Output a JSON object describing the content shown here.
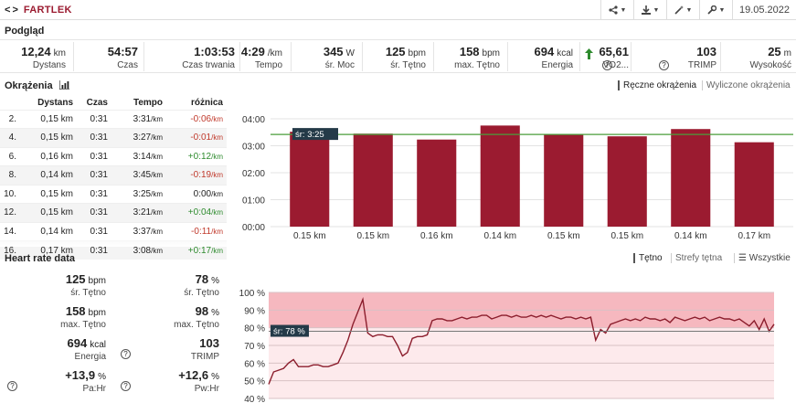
{
  "header": {
    "title": "FARTLEK",
    "date": "19.05.2022",
    "toolbar": [
      {
        "icon": "share-icon"
      },
      {
        "icon": "download-icon"
      },
      {
        "icon": "magic-wand-icon"
      },
      {
        "icon": "wrench-icon"
      }
    ]
  },
  "overview": {
    "heading": "Podgląd",
    "stats": [
      {
        "value": "12,24",
        "unit": "km",
        "label": "Dystans"
      },
      {
        "value": "54:57",
        "unit": "",
        "label": "Czas"
      },
      {
        "value": "1:03:53",
        "unit": "",
        "label": "Czas trwania"
      },
      {
        "value": "4:29",
        "unit": "/km",
        "label": "Tempo"
      },
      {
        "value": "345",
        "unit": "W",
        "label": "śr. Moc"
      },
      {
        "value": "125",
        "unit": "bpm",
        "label": "śr. Tętno"
      },
      {
        "value": "158",
        "unit": "bpm",
        "label": "max. Tętno"
      },
      {
        "value": "694",
        "unit": "kcal",
        "label": "Energia"
      },
      {
        "value": "65,61",
        "unit": "",
        "label": "VO2..."
      },
      {
        "value": "103",
        "unit": "",
        "label": "TRIMP"
      },
      {
        "value": "25",
        "unit": "m",
        "label": "Wysokość"
      }
    ]
  },
  "laps": {
    "heading": "Okrążenia",
    "toggle_manual": "Ręczne okrążenia",
    "toggle_computed": "Wyliczone okrążenia",
    "columns": [
      "",
      "Dystans",
      "Czas",
      "Tempo",
      "różnica"
    ],
    "rows": [
      {
        "n": "2.",
        "dist": "0,15 km",
        "time": "0:31",
        "pace": "3:31",
        "pace_unit": "/km",
        "diff": "-0:06",
        "diff_unit": "/km",
        "sign": "neg"
      },
      {
        "n": "4.",
        "dist": "0,15 km",
        "time": "0:31",
        "pace": "3:27",
        "pace_unit": "/km",
        "diff": "-0:01",
        "diff_unit": "/km",
        "sign": "neg"
      },
      {
        "n": "6.",
        "dist": "0,16 km",
        "time": "0:31",
        "pace": "3:14",
        "pace_unit": "/km",
        "diff": "+0:12",
        "diff_unit": "/km",
        "sign": "pos"
      },
      {
        "n": "8.",
        "dist": "0,14 km",
        "time": "0:31",
        "pace": "3:45",
        "pace_unit": "/km",
        "diff": "-0:19",
        "diff_unit": "/km",
        "sign": "neg"
      },
      {
        "n": "10.",
        "dist": "0,15 km",
        "time": "0:31",
        "pace": "3:25",
        "pace_unit": "/km",
        "diff": "0:00",
        "diff_unit": "/km",
        "sign": "zero"
      },
      {
        "n": "12.",
        "dist": "0,15 km",
        "time": "0:31",
        "pace": "3:21",
        "pace_unit": "/km",
        "diff": "+0:04",
        "diff_unit": "/km",
        "sign": "pos"
      },
      {
        "n": "14.",
        "dist": "0,14 km",
        "time": "0:31",
        "pace": "3:37",
        "pace_unit": "/km",
        "diff": "-0:11",
        "diff_unit": "/km",
        "sign": "neg"
      },
      {
        "n": "16.",
        "dist": "0,17 km",
        "time": "0:31",
        "pace": "3:08",
        "pace_unit": "/km",
        "diff": "+0:17",
        "diff_unit": "/km",
        "sign": "pos"
      }
    ]
  },
  "heart_rate": {
    "heading": "Heart rate data",
    "tabs": [
      "Tętno",
      "Strefy tętna",
      "Wszystkie"
    ],
    "stats": [
      {
        "value": "125",
        "unit": "bpm",
        "label": "śr. Tętno",
        "help": false
      },
      {
        "value": "78",
        "unit": "%",
        "label": "śr. Tętno",
        "help": false
      },
      {
        "value": "158",
        "unit": "bpm",
        "label": "max. Tętno",
        "help": false
      },
      {
        "value": "98",
        "unit": "%",
        "label": "max. Tętno",
        "help": false
      },
      {
        "value": "694",
        "unit": "kcal",
        "label": "Energia",
        "help": false
      },
      {
        "value": "103",
        "unit": "",
        "label": "TRIMP",
        "help": true
      },
      {
        "value": "+13,9",
        "unit": "%",
        "label": "Pa:Hr",
        "help": true
      },
      {
        "value": "+12,6",
        "unit": "%",
        "label": "Pw:Hr",
        "help": true
      }
    ]
  },
  "chart_data": [
    {
      "type": "bar",
      "categories": [
        "0.15 km",
        "0.15 km",
        "0.16 km",
        "0.14 km",
        "0.15 km",
        "0.15 km",
        "0.14 km",
        "0.17 km"
      ],
      "values": [
        3.52,
        3.45,
        3.23,
        3.75,
        3.42,
        3.35,
        3.62,
        3.13
      ],
      "ylim": [
        0,
        4
      ],
      "yticks": [
        "00:00",
        "01:00",
        "02:00",
        "03:00",
        "04:00"
      ],
      "average_value": 3.42,
      "average_label": "śr: 3:25",
      "color": "#9b1b30",
      "avg_color": "#4a9e3a"
    },
    {
      "type": "line",
      "yticks": [
        "40 %",
        "50 %",
        "60 %",
        "70 %",
        "80 %",
        "90 %",
        "100 %"
      ],
      "ylim": [
        40,
        100
      ],
      "zone_min": 80,
      "average_value": 78,
      "average_label": "śr: 78 %",
      "line_color": "#8b1d2c",
      "zone_color": "#f6b8bf",
      "values": [
        48,
        55,
        56,
        57,
        60,
        62,
        58,
        58,
        58,
        59,
        59,
        58,
        58,
        59,
        60,
        66,
        73,
        82,
        89,
        96,
        77,
        75,
        76,
        76,
        75,
        75,
        70,
        64,
        66,
        74,
        75,
        75,
        76,
        84,
        85,
        85,
        84,
        84,
        85,
        86,
        85,
        86,
        86,
        87,
        87,
        85,
        86,
        87,
        87,
        86,
        87,
        86,
        86,
        87,
        86,
        87,
        86,
        87,
        86,
        85,
        86,
        86,
        85,
        86,
        85,
        86,
        73,
        79,
        77,
        82,
        83,
        84,
        85,
        84,
        85,
        84,
        86,
        85,
        85,
        84,
        85,
        83,
        86,
        85,
        84,
        85,
        86,
        85,
        86,
        84,
        85,
        86,
        85,
        85,
        84,
        85,
        83,
        81,
        84,
        79,
        85,
        78,
        82
      ]
    }
  ]
}
